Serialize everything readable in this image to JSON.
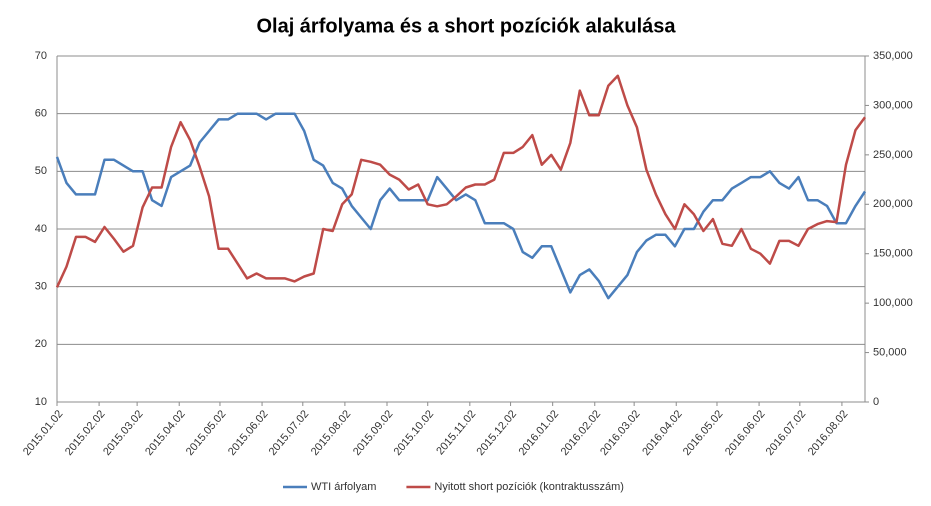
{
  "chart_data": {
    "type": "line",
    "title": "Olaj árfolyama és a short pozíciók alakulása",
    "x": [
      "2015.01.02",
      "2015.01.09",
      "2015.01.16",
      "2015.01.23",
      "2015.01.30",
      "2015.02.06",
      "2015.02.13",
      "2015.02.20",
      "2015.02.27",
      "2015.03.06",
      "2015.03.13",
      "2015.03.20",
      "2015.03.27",
      "2015.04.03",
      "2015.04.10",
      "2015.04.17",
      "2015.04.24",
      "2015.05.01",
      "2015.05.08",
      "2015.05.15",
      "2015.05.22",
      "2015.05.29",
      "2015.06.05",
      "2015.06.12",
      "2015.06.19",
      "2015.06.26",
      "2015.07.03",
      "2015.07.10",
      "2015.07.17",
      "2015.07.24",
      "2015.07.31",
      "2015.08.07",
      "2015.08.14",
      "2015.08.21",
      "2015.08.28",
      "2015.09.04",
      "2015.09.11",
      "2015.09.18",
      "2015.09.25",
      "2015.10.02",
      "2015.10.09",
      "2015.10.16",
      "2015.10.23",
      "2015.10.30",
      "2015.11.06",
      "2015.11.13",
      "2015.11.20",
      "2015.11.27",
      "2015.12.04",
      "2015.12.11",
      "2015.12.18",
      "2015.12.25",
      "2016.01.01",
      "2016.01.08",
      "2016.01.15",
      "2016.01.22",
      "2016.01.29",
      "2016.02.05",
      "2016.02.12",
      "2016.02.19",
      "2016.02.26",
      "2016.03.04",
      "2016.03.11",
      "2016.03.18",
      "2016.03.25",
      "2016.04.01",
      "2016.04.08",
      "2016.04.15",
      "2016.04.22",
      "2016.04.29",
      "2016.05.06",
      "2016.05.13",
      "2016.05.20",
      "2016.05.27",
      "2016.06.03",
      "2016.06.10",
      "2016.06.17",
      "2016.06.24",
      "2016.07.01",
      "2016.07.08",
      "2016.07.15",
      "2016.07.22",
      "2016.07.29",
      "2016.08.05",
      "2016.08.12",
      "2016.08.19"
    ],
    "xlim": [
      "2015.01.02",
      "2016.08.19"
    ],
    "xticks": [
      "2015.01.02",
      "2015.02.02",
      "2015.03.02",
      "2015.04.02",
      "2015.05.02",
      "2015.06.02",
      "2015.07.02",
      "2015.08.02",
      "2015.09.02",
      "2015.10.02",
      "2015.11.02",
      "2015.12.02",
      "2016.01.02",
      "2016.02.02",
      "2016.03.02",
      "2016.04.02",
      "2016.05.02",
      "2016.06.02",
      "2016.07.02",
      "2016.08.02"
    ],
    "ylim": [
      10,
      70
    ],
    "yticks": [
      10,
      20,
      30,
      40,
      50,
      60,
      70
    ],
    "y2lim": [
      0,
      350000
    ],
    "y2ticks": [
      0,
      {
        "value": 50000,
        "label": "50,000"
      },
      {
        "value": 100000,
        "label": "100,000"
      },
      {
        "value": 150000,
        "label": "150,000"
      },
      {
        "value": 200000,
        "label": "200,000"
      },
      {
        "value": 250000,
        "label": "250,000"
      },
      {
        "value": 300000,
        "label": "300,000"
      },
      {
        "value": 350000,
        "label": "350,000"
      }
    ],
    "grid": true,
    "legend": "bottom",
    "series": [
      {
        "name": "WTI árfolyam",
        "color": "#4a7ebb",
        "values": [
          52.5,
          48,
          46,
          46,
          46,
          52,
          52,
          51,
          50,
          50,
          45,
          44,
          49,
          50,
          51,
          55,
          57,
          59,
          59,
          60,
          60,
          60,
          59,
          60,
          60,
          60,
          57,
          52,
          51,
          48,
          47,
          44,
          42,
          40,
          45,
          47,
          45,
          45,
          45,
          45,
          49,
          47,
          45,
          46,
          45,
          41,
          41,
          41,
          40,
          36,
          35,
          37,
          37,
          33,
          29,
          32,
          33,
          31,
          28,
          30,
          32,
          36,
          38,
          39,
          39,
          37,
          40,
          40,
          43,
          45,
          45,
          47,
          48,
          49,
          49,
          50,
          48,
          47,
          49,
          45,
          45,
          44,
          41,
          41,
          44,
          46.5
        ]
      },
      {
        "name": "Nyitott short pozíciók (kontraktusszám)",
        "color": "#be4b48",
        "axis": "y2",
        "values": [
          116000,
          137000,
          167000,
          167000,
          162000,
          177000,
          165000,
          152000,
          158000,
          197000,
          217000,
          217000,
          258000,
          283000,
          265000,
          238000,
          208000,
          155000,
          155000,
          140000,
          125000,
          130000,
          125000,
          125000,
          125000,
          122000,
          127000,
          130000,
          175000,
          173000,
          200000,
          210000,
          245000,
          243000,
          240000,
          230000,
          225000,
          215000,
          220000,
          200000,
          198000,
          200000,
          208000,
          217000,
          220000,
          220000,
          225000,
          252000,
          252000,
          258000,
          270000,
          240000,
          250000,
          235000,
          262000,
          315000,
          290000,
          290000,
          320000,
          330000,
          300000,
          278000,
          235000,
          210000,
          190000,
          175000,
          200000,
          190000,
          173000,
          185000,
          160000,
          158000,
          175000,
          155000,
          150000,
          140000,
          163000,
          163000,
          158000,
          175000,
          180000,
          183000,
          182000,
          240000,
          275000,
          288000
        ]
      }
    ]
  }
}
